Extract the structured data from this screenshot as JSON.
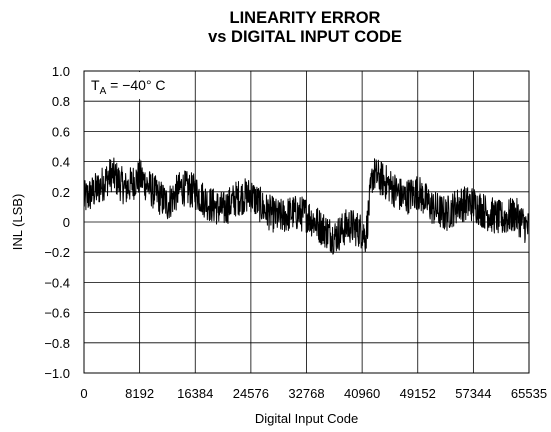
{
  "chart_data": {
    "type": "line",
    "title": [
      "LINEARITY ERROR",
      "vs DIGITAL INPUT CODE"
    ],
    "xlabel": "Digital Input Code",
    "ylabel": "INL (LSB)",
    "xlim": [
      0,
      65535
    ],
    "ylim": [
      -1.0,
      1.0
    ],
    "xticks": [
      0,
      8192,
      16384,
      24576,
      32768,
      40960,
      49152,
      57344,
      65535
    ],
    "xtick_labels": [
      "0",
      "8192",
      "16384",
      "24576",
      "32768",
      "40960",
      "49152",
      "57344",
      "65535"
    ],
    "yticks": [
      1.0,
      0.8,
      0.6,
      0.4,
      0.2,
      0,
      -0.2,
      -0.4,
      -0.6,
      -0.8,
      -1.0
    ],
    "ytick_labels": [
      "1.0",
      "0.8",
      "0.6",
      "0.4",
      "0.2",
      "0",
      "−0.2",
      "−0.4",
      "−0.6",
      "−0.8",
      "−1.0"
    ],
    "grid": true,
    "annotation": {
      "main": "T",
      "sub": "A",
      "rest": " = −40° C"
    },
    "series": [
      {
        "points": [
          [
            0,
            0.15
          ],
          [
            2048,
            0.22
          ],
          [
            4096,
            0.32
          ],
          [
            6144,
            0.22
          ],
          [
            8192,
            0.3
          ],
          [
            10240,
            0.2
          ],
          [
            12288,
            0.12
          ],
          [
            14336,
            0.23
          ],
          [
            16384,
            0.2
          ],
          [
            18432,
            0.12
          ],
          [
            20480,
            0.08
          ],
          [
            22528,
            0.16
          ],
          [
            24576,
            0.18
          ],
          [
            26624,
            0.08
          ],
          [
            28672,
            0.03
          ],
          [
            30720,
            0.06
          ],
          [
            32768,
            0.05
          ],
          [
            34816,
            -0.03
          ],
          [
            36864,
            -0.1
          ],
          [
            38912,
            -0.02
          ],
          [
            40960,
            -0.06
          ],
          [
            41500,
            -0.1
          ],
          [
            42500,
            0.32
          ],
          [
            44000,
            0.28
          ],
          [
            45056,
            0.24
          ],
          [
            47104,
            0.16
          ],
          [
            49152,
            0.2
          ],
          [
            51200,
            0.1
          ],
          [
            53248,
            0.05
          ],
          [
            55296,
            0.12
          ],
          [
            57344,
            0.12
          ],
          [
            59392,
            0.06
          ],
          [
            61440,
            0.02
          ],
          [
            63488,
            0.05
          ],
          [
            65535,
            -0.05
          ]
        ],
        "noise_amplitude": 0.12,
        "color": "#000000"
      }
    ]
  }
}
